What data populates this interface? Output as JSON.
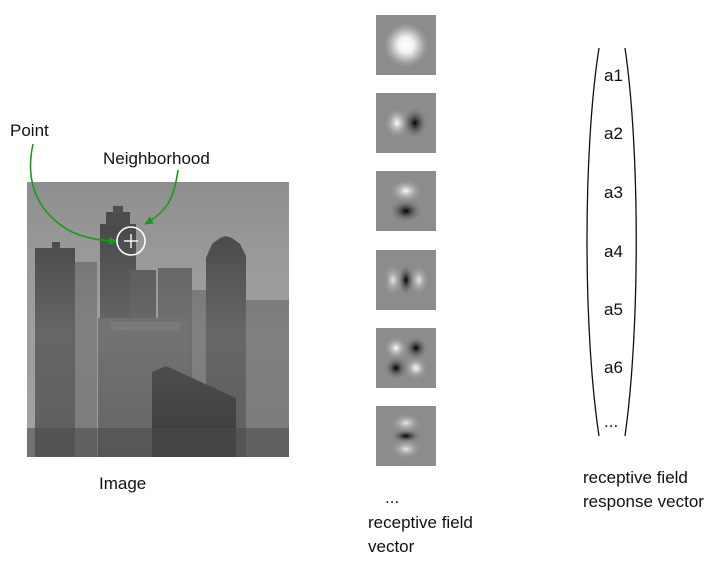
{
  "labels": {
    "point": "Point",
    "neighborhood": "Neighborhood",
    "image": "Image",
    "rf_ellipsis": "...",
    "rf_vector_line1": "receptive field",
    "rf_vector_line2": "vector",
    "response_line1": "receptive field",
    "response_line2": "response vector"
  },
  "response_vector": [
    "a1",
    "a2",
    "a3",
    "a4",
    "a5",
    "a6",
    "..."
  ],
  "colors": {
    "arrow": "#1a9a1a",
    "marker": "#ffffff"
  }
}
